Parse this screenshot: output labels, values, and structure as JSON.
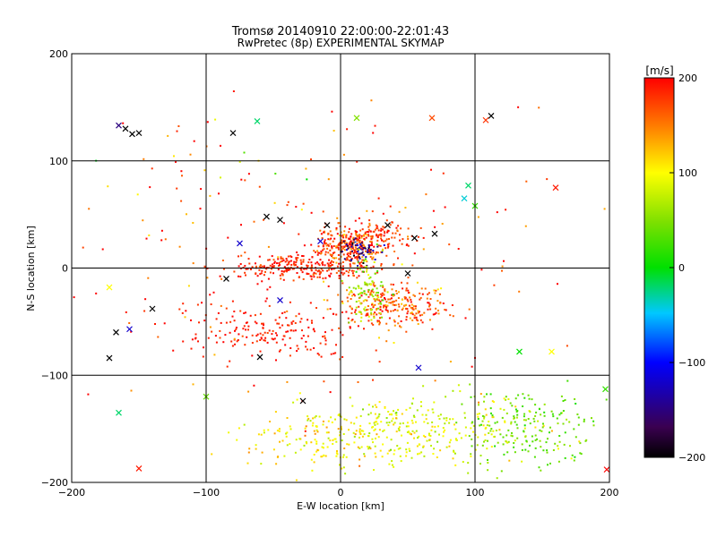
{
  "chart_data": {
    "type": "scatter",
    "title": "Tromsø 20140910 22:00:00-22:01:43",
    "subtitle": "RwPretec (8p) EXPERIMENTAL SKYMAP",
    "xlabel": "E-W location [km]",
    "ylabel": "N-S location [km]",
    "xlim": [
      -200,
      200
    ],
    "ylim": [
      -200,
      200
    ],
    "xticks": [
      -200,
      -100,
      0,
      100,
      200
    ],
    "yticks": [
      -200,
      -100,
      0,
      100,
      200
    ],
    "grid": true,
    "colorbar": {
      "label": "[m/s]",
      "min": -200,
      "max": 200,
      "ticks": [
        200,
        100,
        0,
        -100,
        -200
      ]
    },
    "clusters": [
      {
        "cx": -30,
        "cy": 0,
        "sx": 40,
        "sy": 8,
        "n": 260,
        "v": 185,
        "sv": 20
      },
      {
        "cx": 5,
        "cy": 20,
        "sx": 18,
        "sy": 12,
        "n": 220,
        "v": 175,
        "sv": 35
      },
      {
        "cx": 30,
        "cy": 30,
        "sx": 20,
        "sy": 10,
        "n": 120,
        "v": 180,
        "sv": 25
      },
      {
        "cx": 40,
        "cy": -35,
        "sx": 28,
        "sy": 15,
        "n": 260,
        "v": 165,
        "sv": 40
      },
      {
        "cx": -50,
        "cy": -60,
        "sx": 45,
        "sy": 20,
        "n": 170,
        "v": 190,
        "sv": 15
      },
      {
        "cx": 15,
        "cy": 15,
        "sx": 10,
        "sy": 8,
        "n": 60,
        "v": -150,
        "sv": 40
      },
      {
        "cx": 20,
        "cy": -20,
        "sx": 10,
        "sy": 20,
        "n": 90,
        "v": 60,
        "sv": 30
      },
      {
        "cx": 60,
        "cy": -150,
        "sx": 70,
        "sy": 25,
        "n": 320,
        "v": 90,
        "sv": 25
      },
      {
        "cx": 140,
        "cy": -150,
        "sx": 35,
        "sy": 25,
        "n": 180,
        "v": 40,
        "sv": 20
      },
      {
        "cx": -20,
        "cy": -160,
        "sx": 40,
        "sy": 20,
        "n": 110,
        "v": 110,
        "sv": 25
      },
      {
        "cx": 0,
        "cy": 0,
        "sx": 120,
        "sy": 100,
        "n": 200,
        "v": 170,
        "sv": 50
      },
      {
        "cx": -100,
        "cy": 100,
        "sx": 60,
        "sy": 50,
        "n": 40,
        "v": 150,
        "sv": 100
      }
    ],
    "markers": [
      {
        "x": -165,
        "y": 133,
        "v": -150
      },
      {
        "x": -160,
        "y": 130,
        "v": -200
      },
      {
        "x": -155,
        "y": 125,
        "v": -200
      },
      {
        "x": -150,
        "y": 126,
        "v": -200
      },
      {
        "x": -62,
        "y": 137,
        "v": -20
      },
      {
        "x": -80,
        "y": 126,
        "v": -200
      },
      {
        "x": 12,
        "y": 140,
        "v": 50
      },
      {
        "x": 68,
        "y": 140,
        "v": 170
      },
      {
        "x": 112,
        "y": 142,
        "v": -200
      },
      {
        "x": 108,
        "y": 138,
        "v": 180
      },
      {
        "x": 160,
        "y": 75,
        "v": 190
      },
      {
        "x": 100,
        "y": 58,
        "v": 20
      },
      {
        "x": 95,
        "y": 77,
        "v": -20
      },
      {
        "x": 92,
        "y": 65,
        "v": -40
      },
      {
        "x": -172,
        "y": -18,
        "v": 100
      },
      {
        "x": -167,
        "y": -60,
        "v": -200
      },
      {
        "x": -157,
        "y": -57,
        "v": -120
      },
      {
        "x": -140,
        "y": -38,
        "v": -200
      },
      {
        "x": -172,
        "y": -84,
        "v": -200
      },
      {
        "x": -165,
        "y": -135,
        "v": -20
      },
      {
        "x": -150,
        "y": -187,
        "v": 190
      },
      {
        "x": -100,
        "y": -120,
        "v": 40
      },
      {
        "x": -60,
        "y": -83,
        "v": -200
      },
      {
        "x": -28,
        "y": -124,
        "v": -200
      },
      {
        "x": -10,
        "y": 40,
        "v": -200
      },
      {
        "x": -55,
        "y": 48,
        "v": -200
      },
      {
        "x": -45,
        "y": 45,
        "v": -200
      },
      {
        "x": -15,
        "y": 25,
        "v": -120
      },
      {
        "x": 35,
        "y": 40,
        "v": -200
      },
      {
        "x": 55,
        "y": 28,
        "v": -200
      },
      {
        "x": 70,
        "y": 32,
        "v": -200
      },
      {
        "x": 50,
        "y": -5,
        "v": -200
      },
      {
        "x": 58,
        "y": -93,
        "v": -120
      },
      {
        "x": 133,
        "y": -78,
        "v": 0
      },
      {
        "x": 157,
        "y": -78,
        "v": 100
      },
      {
        "x": 197,
        "y": -113,
        "v": 20
      },
      {
        "x": 198,
        "y": -188,
        "v": 200
      },
      {
        "x": -75,
        "y": 23,
        "v": -120
      },
      {
        "x": -85,
        "y": -10,
        "v": -200
      },
      {
        "x": -45,
        "y": -30,
        "v": -120
      }
    ]
  }
}
